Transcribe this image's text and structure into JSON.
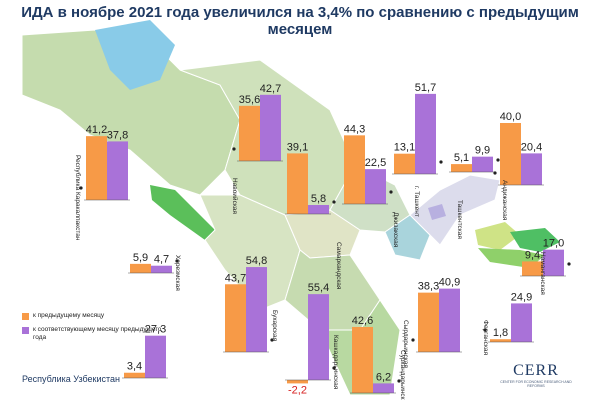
{
  "title": "ИДА в ноябре 2021 года увеличился на 3,4% по сравнению с предыдущим месяцем",
  "legend": {
    "prev_month": "к предыдущему месяцу",
    "prev_year": "к соответствующему месяцу предыдущего года"
  },
  "logo": {
    "name": "CERR",
    "subtitle": "CENTER FOR ECONOMIC RESEARCH AND REFORMS"
  },
  "colors": {
    "prev_month": "#f79a47",
    "prev_year": "#a972d8",
    "negative_label": "#d62020",
    "title": "#1f3a63"
  },
  "chart_data": {
    "type": "bar",
    "series": [
      {
        "name": "к предыдущему месяцу",
        "key": "prev_month"
      },
      {
        "name": "к соответствующему месяцу предыдущего года",
        "key": "prev_year"
      }
    ],
    "regions": [
      {
        "name": "Республика Каракалпакстан",
        "prev_month": 41.2,
        "prev_month_label": "41,2",
        "prev_year": 37.8,
        "prev_year_label": "37,8"
      },
      {
        "name": "Хорезмская",
        "prev_month": 5.9,
        "prev_month_label": "5,9",
        "prev_year": 4.7,
        "prev_year_label": "4,7"
      },
      {
        "name": "Навоийская",
        "prev_month": 35.6,
        "prev_month_label": "35,6",
        "prev_year": 42.7,
        "prev_year_label": "42,7"
      },
      {
        "name": "Бухарская",
        "prev_month": 43.7,
        "prev_month_label": "43,7",
        "prev_year": 54.8,
        "prev_year_label": "54,8"
      },
      {
        "name": "Самаркандская",
        "prev_month": 39.1,
        "prev_month_label": "39,1",
        "prev_year": 5.8,
        "prev_year_label": "5,8"
      },
      {
        "name": "Кашкадарьинская",
        "prev_month": -2.2,
        "prev_month_label": "-2,2",
        "prev_year": 55.4,
        "prev_year_label": "55,4"
      },
      {
        "name": "Сурхандарьинская",
        "prev_month": 42.6,
        "prev_month_label": "42,6",
        "prev_year": 6.2,
        "prev_year_label": "6,2"
      },
      {
        "name": "Джизакская",
        "prev_month": 44.3,
        "prev_month_label": "44,3",
        "prev_year": 22.5,
        "prev_year_label": "22,5"
      },
      {
        "name": "Сырдарьинская",
        "prev_month": 38.3,
        "prev_month_label": "38,3",
        "prev_year": 40.9,
        "prev_year_label": "40,9"
      },
      {
        "name": "г. Ташкент",
        "prev_month": 13.1,
        "prev_month_label": "13,1",
        "prev_year": 51.7,
        "prev_year_label": "51,7"
      },
      {
        "name": "Ташкентская",
        "prev_month": 5.1,
        "prev_month_label": "5,1",
        "prev_year": 9.9,
        "prev_year_label": "9,9"
      },
      {
        "name": "Андижанская",
        "prev_month": 40.0,
        "prev_month_label": "40,0",
        "prev_year": 20.4,
        "prev_year_label": "20,4"
      },
      {
        "name": "Наманганская",
        "prev_month": 9.4,
        "prev_month_label": "9,4",
        "prev_year": 17.0,
        "prev_year_label": "17,0"
      },
      {
        "name": "Ферганская",
        "prev_month": 1.8,
        "prev_month_label": "1,8",
        "prev_year": 24.9,
        "prev_year_label": "24,9"
      },
      {
        "name": "Республика Узбекистан",
        "prev_month": 3.4,
        "prev_month_label": "3,4",
        "prev_year": 27.3,
        "prev_year_label": "27,3"
      }
    ]
  }
}
